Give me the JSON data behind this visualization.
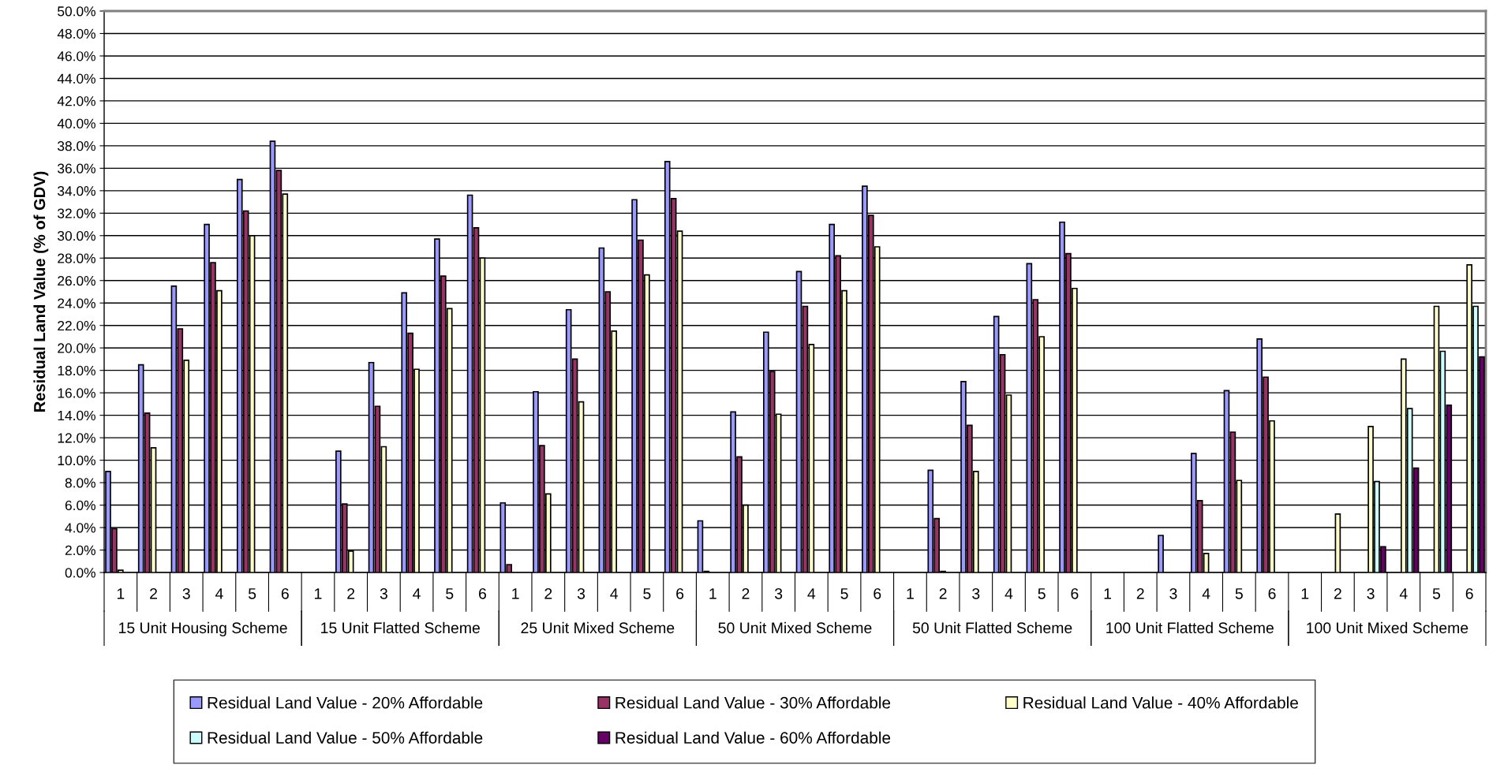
{
  "chart_data": {
    "type": "bar",
    "ylabel": "Residual Land Value (% of GDV)",
    "categories": [
      "1",
      "2",
      "3",
      "4",
      "5",
      "6",
      "1",
      "2",
      "3",
      "4",
      "5",
      "6",
      "1",
      "2",
      "3",
      "4",
      "5",
      "6",
      "1",
      "2",
      "3",
      "4",
      "5",
      "6",
      "1",
      "2",
      "3",
      "4",
      "5",
      "6",
      "1",
      "2",
      "3",
      "4",
      "5",
      "6",
      "1",
      "2",
      "3",
      "4",
      "5",
      "6"
    ],
    "annotations": [
      "15 Unit Housing Scheme",
      "15 Unit Flatted Scheme",
      "25 Unit Mixed Scheme",
      "50 Unit Mixed Scheme",
      "50 Unit Flatted Scheme",
      "100 Unit Flatted Scheme",
      "100 Unit Mixed Scheme"
    ],
    "series": [
      {
        "name": "Residual Land Value - 20% Affordable",
        "color": "#9999ff",
        "values": [
          9.0,
          18.5,
          25.5,
          31.0,
          35.0,
          38.4,
          null,
          10.8,
          18.7,
          24.9,
          29.7,
          33.6,
          6.2,
          16.1,
          23.4,
          28.9,
          33.2,
          36.6,
          4.6,
          14.3,
          21.4,
          26.8,
          31.0,
          34.4,
          null,
          9.1,
          17.0,
          22.8,
          27.5,
          31.2,
          null,
          null,
          3.3,
          10.6,
          16.2,
          20.8,
          null,
          null,
          null,
          null,
          null,
          null
        ]
      },
      {
        "name": "Residual Land Value - 30% Affordable",
        "color": "#993366",
        "values": [
          3.9,
          14.2,
          21.7,
          27.6,
          32.2,
          35.8,
          null,
          6.1,
          14.8,
          21.3,
          26.4,
          30.7,
          0.7,
          11.3,
          19.0,
          25.0,
          29.6,
          33.3,
          0.1,
          10.3,
          17.9,
          23.7,
          28.2,
          31.8,
          null,
          4.8,
          13.1,
          19.4,
          24.3,
          28.4,
          null,
          null,
          null,
          6.4,
          12.5,
          17.4,
          null,
          null,
          null,
          null,
          null,
          null
        ]
      },
      {
        "name": "Residual Land Value - 40% Affordable",
        "color": "#ffffcc",
        "values": [
          0.2,
          11.1,
          18.9,
          25.1,
          30.0,
          33.7,
          null,
          1.9,
          11.2,
          18.1,
          23.5,
          28.0,
          null,
          7.0,
          15.2,
          21.5,
          26.5,
          30.4,
          null,
          6.0,
          14.1,
          20.3,
          25.1,
          29.0,
          null,
          0.1,
          9.0,
          15.8,
          21.0,
          25.3,
          null,
          null,
          null,
          1.7,
          8.2,
          13.5,
          null,
          5.2,
          13.0,
          19.0,
          23.7,
          27.4
        ]
      },
      {
        "name": "Residual Land Value - 50% Affordable",
        "color": "#ccffff",
        "values": [
          null,
          null,
          null,
          null,
          null,
          null,
          null,
          null,
          null,
          null,
          null,
          null,
          null,
          null,
          null,
          null,
          null,
          null,
          null,
          null,
          null,
          null,
          null,
          null,
          null,
          null,
          null,
          null,
          null,
          null,
          null,
          null,
          null,
          null,
          null,
          null,
          null,
          null,
          8.1,
          14.6,
          19.7,
          23.7
        ]
      },
      {
        "name": "Residual Land Value - 60% Affordable",
        "color": "#660066",
        "values": [
          null,
          null,
          null,
          null,
          null,
          null,
          null,
          null,
          null,
          null,
          null,
          null,
          null,
          null,
          null,
          null,
          null,
          null,
          null,
          null,
          null,
          null,
          null,
          null,
          null,
          null,
          null,
          null,
          null,
          null,
          null,
          null,
          null,
          null,
          null,
          null,
          null,
          null,
          2.3,
          9.3,
          14.9,
          19.2
        ]
      }
    ],
    "ylim": [
      0,
      50
    ],
    "yticks": [
      {
        "value": 0,
        "label": "0.0%"
      },
      {
        "value": 2,
        "label": "2.0%"
      },
      {
        "value": 4,
        "label": "4.0%"
      },
      {
        "value": 6,
        "label": "6.0%"
      },
      {
        "value": 8,
        "label": "8.0%"
      },
      {
        "value": 10,
        "label": "10.0%"
      },
      {
        "value": 12,
        "label": "12.0%"
      },
      {
        "value": 14,
        "label": "14.0%"
      },
      {
        "value": 16,
        "label": "16.0%"
      },
      {
        "value": 18,
        "label": "18.0%"
      },
      {
        "value": 20,
        "label": "20.0%"
      },
      {
        "value": 22,
        "label": "22.0%"
      },
      {
        "value": 24,
        "label": "24.0%"
      },
      {
        "value": 26,
        "label": "26.0%"
      },
      {
        "value": 28,
        "label": "28.0%"
      },
      {
        "value": 30,
        "label": "30.0%"
      },
      {
        "value": 32,
        "label": "32.0%"
      },
      {
        "value": 34,
        "label": "34.0%"
      },
      {
        "value": 36,
        "label": "36.0%"
      },
      {
        "value": 38,
        "label": "38.0%"
      },
      {
        "value": 40,
        "label": "40.0%"
      },
      {
        "value": 42,
        "label": "42.0%"
      },
      {
        "value": 44,
        "label": "44.0%"
      },
      {
        "value": 46,
        "label": "46.0%"
      },
      {
        "value": 48,
        "label": "48.0%"
      },
      {
        "value": 50,
        "label": "50.0%"
      }
    ],
    "grid": "y",
    "legend": "bottom"
  }
}
